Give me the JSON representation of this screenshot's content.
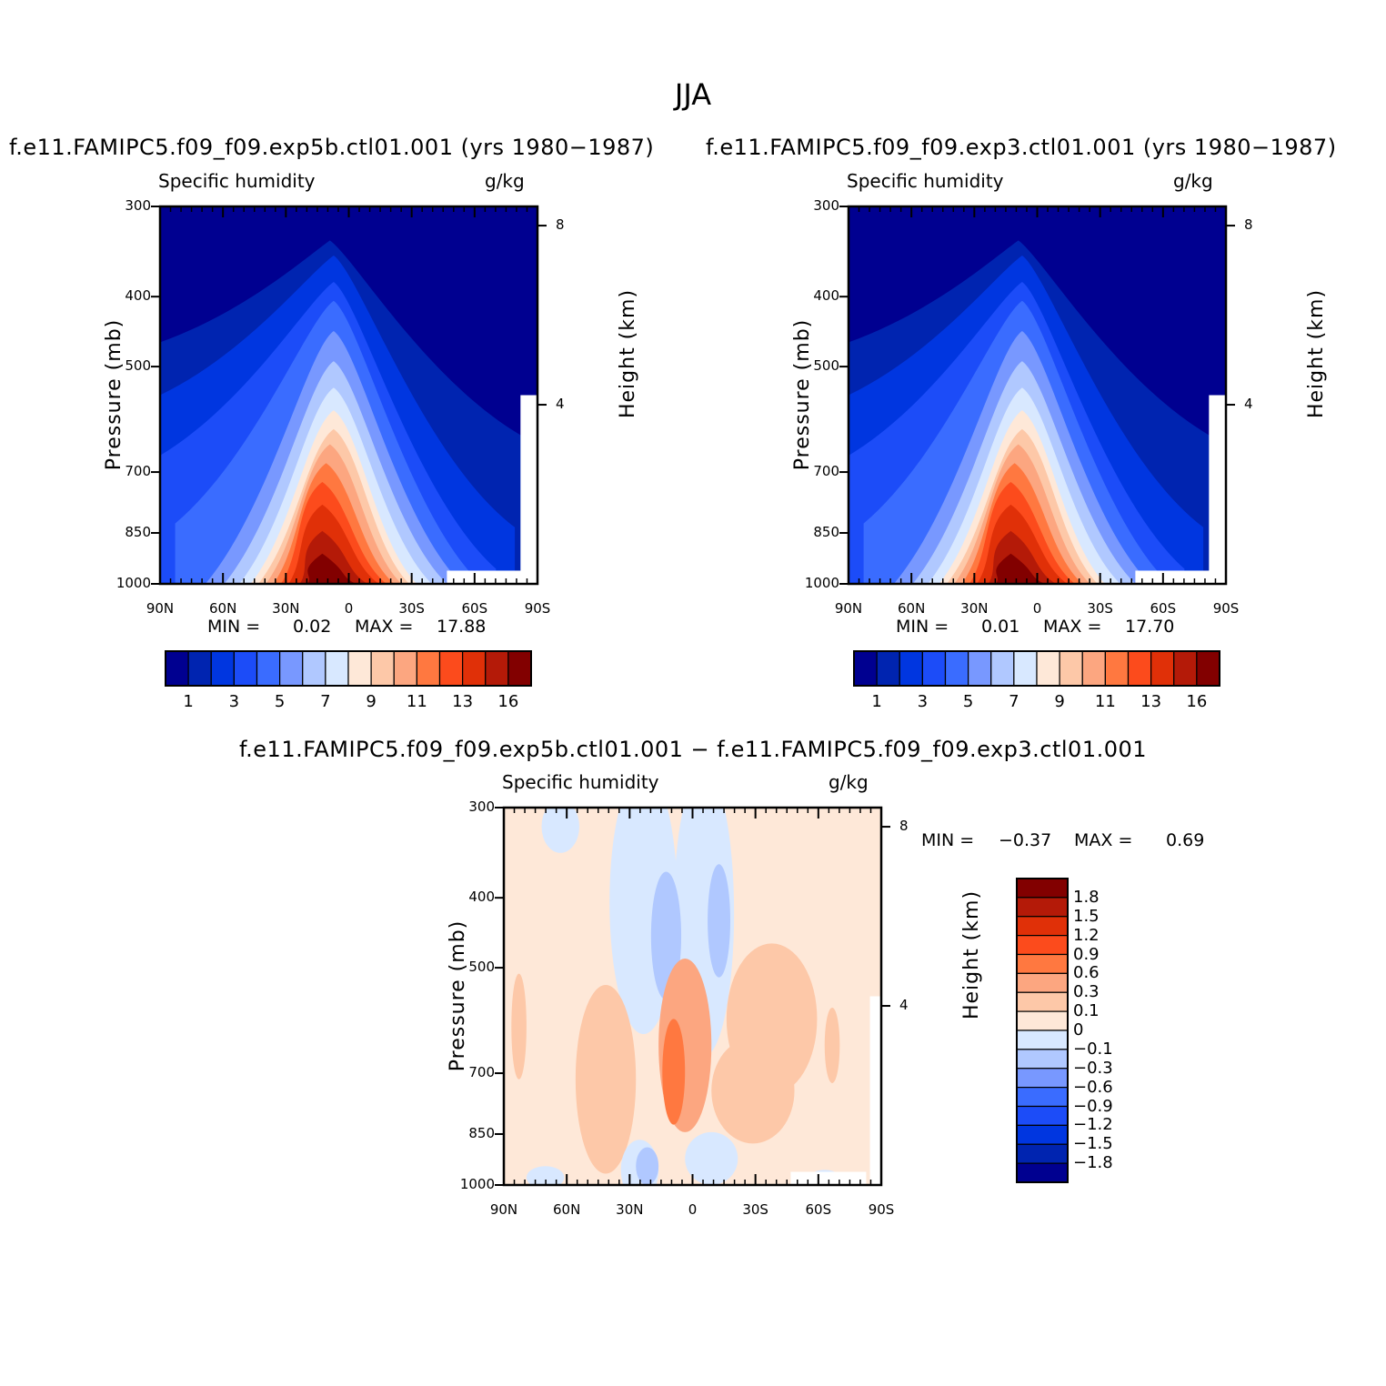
{
  "title": "JJA",
  "colors": {
    "abs_levels": [
      "#000090",
      "#0024b0",
      "#0036e0",
      "#1c4cf8",
      "#3a6cff",
      "#7898ff",
      "#b0c8ff",
      "#d8e8ff",
      "#fee8d8",
      "#fdc8a8",
      "#fca680",
      "#ff7840",
      "#fc4b1c",
      "#e03008",
      "#b41a08",
      "#820000"
    ],
    "diff_levels": [
      "#000090",
      "#0024b0",
      "#0036e0",
      "#1c4cf8",
      "#3a6cff",
      "#7898ff",
      "#b0c8ff",
      "#d8e8ff",
      "#fee8d8",
      "#fdc8a8",
      "#fca680",
      "#ff7840",
      "#fc4b1c",
      "#e03008",
      "#b41a08",
      "#820000"
    ]
  },
  "chart_data": [
    {
      "type": "heatmap",
      "title": "f.e11.FAMIPC5.f09_f09.exp5b.ctl01.001 (yrs 1980−1987)",
      "left_label": "Specific humidity",
      "right_label": "g/kg",
      "xlabel": "",
      "ylabel": "Pressure (mb)",
      "y2label": "Height (km)",
      "x_ticks": [
        "90N",
        "60N",
        "30N",
        "0",
        "30S",
        "60S",
        "90S"
      ],
      "x_values": [
        90,
        60,
        30,
        0,
        -30,
        -60,
        -90
      ],
      "y_ticks": [
        "300",
        "400",
        "500",
        "700",
        "850",
        "1000"
      ],
      "y_values": [
        300,
        400,
        500,
        700,
        850,
        1000
      ],
      "ylim": [
        300,
        1000
      ],
      "y_scale": "log",
      "y2_ticks": [
        "8",
        "4"
      ],
      "y2_values": [
        8,
        4
      ],
      "min_label": "MIN =",
      "min_value": "0.02",
      "max_label": "MAX =",
      "max_value": "17.88",
      "levels": [
        1,
        3,
        5,
        7,
        9,
        11,
        13,
        16
      ],
      "level_labels": [
        "1",
        "3",
        "5",
        "7",
        "9",
        "11",
        "13",
        "16"
      ],
      "value_field": "zonal mean specific humidity, peak ~17.9 g/kg near 10N at 1000 mb, decreasing poleward and upward"
    },
    {
      "type": "heatmap",
      "title": "f.e11.FAMIPC5.f09_f09.exp3.ctl01.001 (yrs 1980−1987)",
      "left_label": "Specific humidity",
      "right_label": "g/kg",
      "xlabel": "",
      "ylabel": "Pressure (mb)",
      "y2label": "Height (km)",
      "x_ticks": [
        "90N",
        "60N",
        "30N",
        "0",
        "30S",
        "60S",
        "90S"
      ],
      "x_values": [
        90,
        60,
        30,
        0,
        -30,
        -60,
        -90
      ],
      "y_ticks": [
        "300",
        "400",
        "500",
        "700",
        "850",
        "1000"
      ],
      "y_values": [
        300,
        400,
        500,
        700,
        850,
        1000
      ],
      "ylim": [
        300,
        1000
      ],
      "y_scale": "log",
      "y2_ticks": [
        "8",
        "4"
      ],
      "y2_values": [
        8,
        4
      ],
      "min_label": "MIN =",
      "min_value": "0.01",
      "max_label": "MAX =",
      "max_value": "17.70",
      "levels": [
        1,
        3,
        5,
        7,
        9,
        11,
        13,
        16
      ],
      "level_labels": [
        "1",
        "3",
        "5",
        "7",
        "9",
        "11",
        "13",
        "16"
      ]
    },
    {
      "type": "heatmap",
      "title": "f.e11.FAMIPC5.f09_f09.exp5b.ctl01.001 − f.e11.FAMIPC5.f09_f09.exp3.ctl01.001",
      "left_label": "Specific humidity",
      "right_label": "g/kg",
      "xlabel": "",
      "ylabel": "Pressure (mb)",
      "y2label": "Height (km)",
      "x_ticks": [
        "90N",
        "60N",
        "30N",
        "0",
        "30S",
        "60S",
        "90S"
      ],
      "x_values": [
        90,
        60,
        30,
        0,
        -30,
        -60,
        -90
      ],
      "y_ticks": [
        "300",
        "400",
        "500",
        "700",
        "850",
        "1000"
      ],
      "y_values": [
        300,
        400,
        500,
        700,
        850,
        1000
      ],
      "ylim": [
        300,
        1000
      ],
      "y_scale": "log",
      "y2_ticks": [
        "8",
        "4"
      ],
      "y2_values": [
        8,
        4
      ],
      "min_label": "MIN =",
      "min_value": "−0.37",
      "max_label": "MAX =",
      "max_value": "0.69",
      "level_labels": [
        "1.8",
        "1.5",
        "1.2",
        "0.9",
        "0.6",
        "0.3",
        "0.1",
        "0",
        "−0.1",
        "−0.3",
        "−0.6",
        "−0.9",
        "−1.2",
        "−1.5",
        "−1.8"
      ]
    }
  ]
}
